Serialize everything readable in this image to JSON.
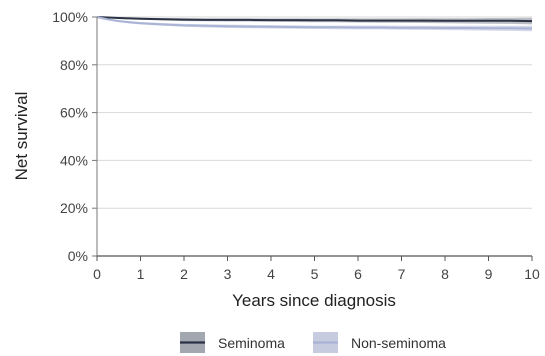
{
  "chart_data": {
    "type": "line",
    "title": "",
    "xlabel": "Years since diagnosis",
    "ylabel": "Net survival",
    "xlim": [
      0,
      10
    ],
    "ylim": [
      0,
      100
    ],
    "x_ticks": [
      0,
      1,
      2,
      3,
      4,
      5,
      6,
      7,
      8,
      9,
      10
    ],
    "x_tick_labels": [
      "0",
      "1",
      "2",
      "3",
      "4",
      "5",
      "6",
      "7",
      "8",
      "9",
      "10"
    ],
    "y_ticks": [
      0,
      20,
      40,
      60,
      80,
      100
    ],
    "y_tick_labels": [
      "0%",
      "20%",
      "40%",
      "60%",
      "80%",
      "100%"
    ],
    "grid": "horizontal",
    "legend_position": "bottom",
    "series": [
      {
        "name": "Seminoma",
        "color": "#2b3345",
        "band_color": "#a3a7b0",
        "x": [
          0,
          0.25,
          0.5,
          0.75,
          1,
          1.5,
          2,
          2.5,
          3,
          3.5,
          4,
          4.5,
          5,
          5.5,
          6,
          6.5,
          7,
          7.5,
          8,
          8.5,
          9,
          9.5,
          10
        ],
        "values": [
          100,
          99.8,
          99.6,
          99.4,
          99.3,
          99.1,
          98.9,
          98.8,
          98.8,
          98.8,
          98.7,
          98.7,
          98.6,
          98.6,
          98.5,
          98.5,
          98.5,
          98.5,
          98.4,
          98.4,
          98.4,
          98.4,
          98.3
        ],
        "lower": [
          100,
          99.6,
          99.3,
          99.0,
          98.9,
          98.6,
          98.3,
          98.2,
          98.1,
          98.1,
          98.0,
          97.9,
          97.8,
          97.8,
          97.7,
          97.6,
          97.6,
          97.5,
          97.4,
          97.3,
          97.2,
          97.1,
          96.9
        ],
        "upper": [
          100,
          100,
          99.9,
          99.8,
          99.7,
          99.6,
          99.5,
          99.4,
          99.4,
          99.4,
          99.4,
          99.4,
          99.4,
          99.4,
          99.4,
          99.4,
          99.4,
          99.5,
          99.5,
          99.5,
          99.6,
          99.6,
          99.7
        ]
      },
      {
        "name": "Non-seminoma",
        "color": "#a9b3d6",
        "band_color": "#c6cbe0",
        "x": [
          0,
          0.25,
          0.5,
          0.75,
          1,
          1.5,
          2,
          2.5,
          3,
          3.5,
          4,
          4.5,
          5,
          5.5,
          6,
          6.5,
          7,
          7.5,
          8,
          8.5,
          9,
          9.5,
          10
        ],
        "values": [
          100,
          99.0,
          98.3,
          97.8,
          97.4,
          96.9,
          96.5,
          96.3,
          96.1,
          96.0,
          95.9,
          95.8,
          95.7,
          95.7,
          95.6,
          95.6,
          95.5,
          95.5,
          95.4,
          95.4,
          95.3,
          95.3,
          95.2
        ],
        "lower": [
          100,
          98.7,
          97.9,
          97.3,
          96.9,
          96.3,
          95.9,
          95.6,
          95.4,
          95.3,
          95.2,
          95.1,
          95.0,
          94.9,
          94.8,
          94.8,
          94.7,
          94.6,
          94.5,
          94.4,
          94.3,
          94.2,
          94.0
        ],
        "upper": [
          100,
          99.3,
          98.7,
          98.3,
          97.9,
          97.5,
          97.1,
          97.0,
          96.8,
          96.7,
          96.6,
          96.5,
          96.4,
          96.4,
          96.4,
          96.4,
          96.3,
          96.3,
          96.3,
          96.3,
          96.3,
          96.3,
          96.3
        ]
      }
    ]
  }
}
